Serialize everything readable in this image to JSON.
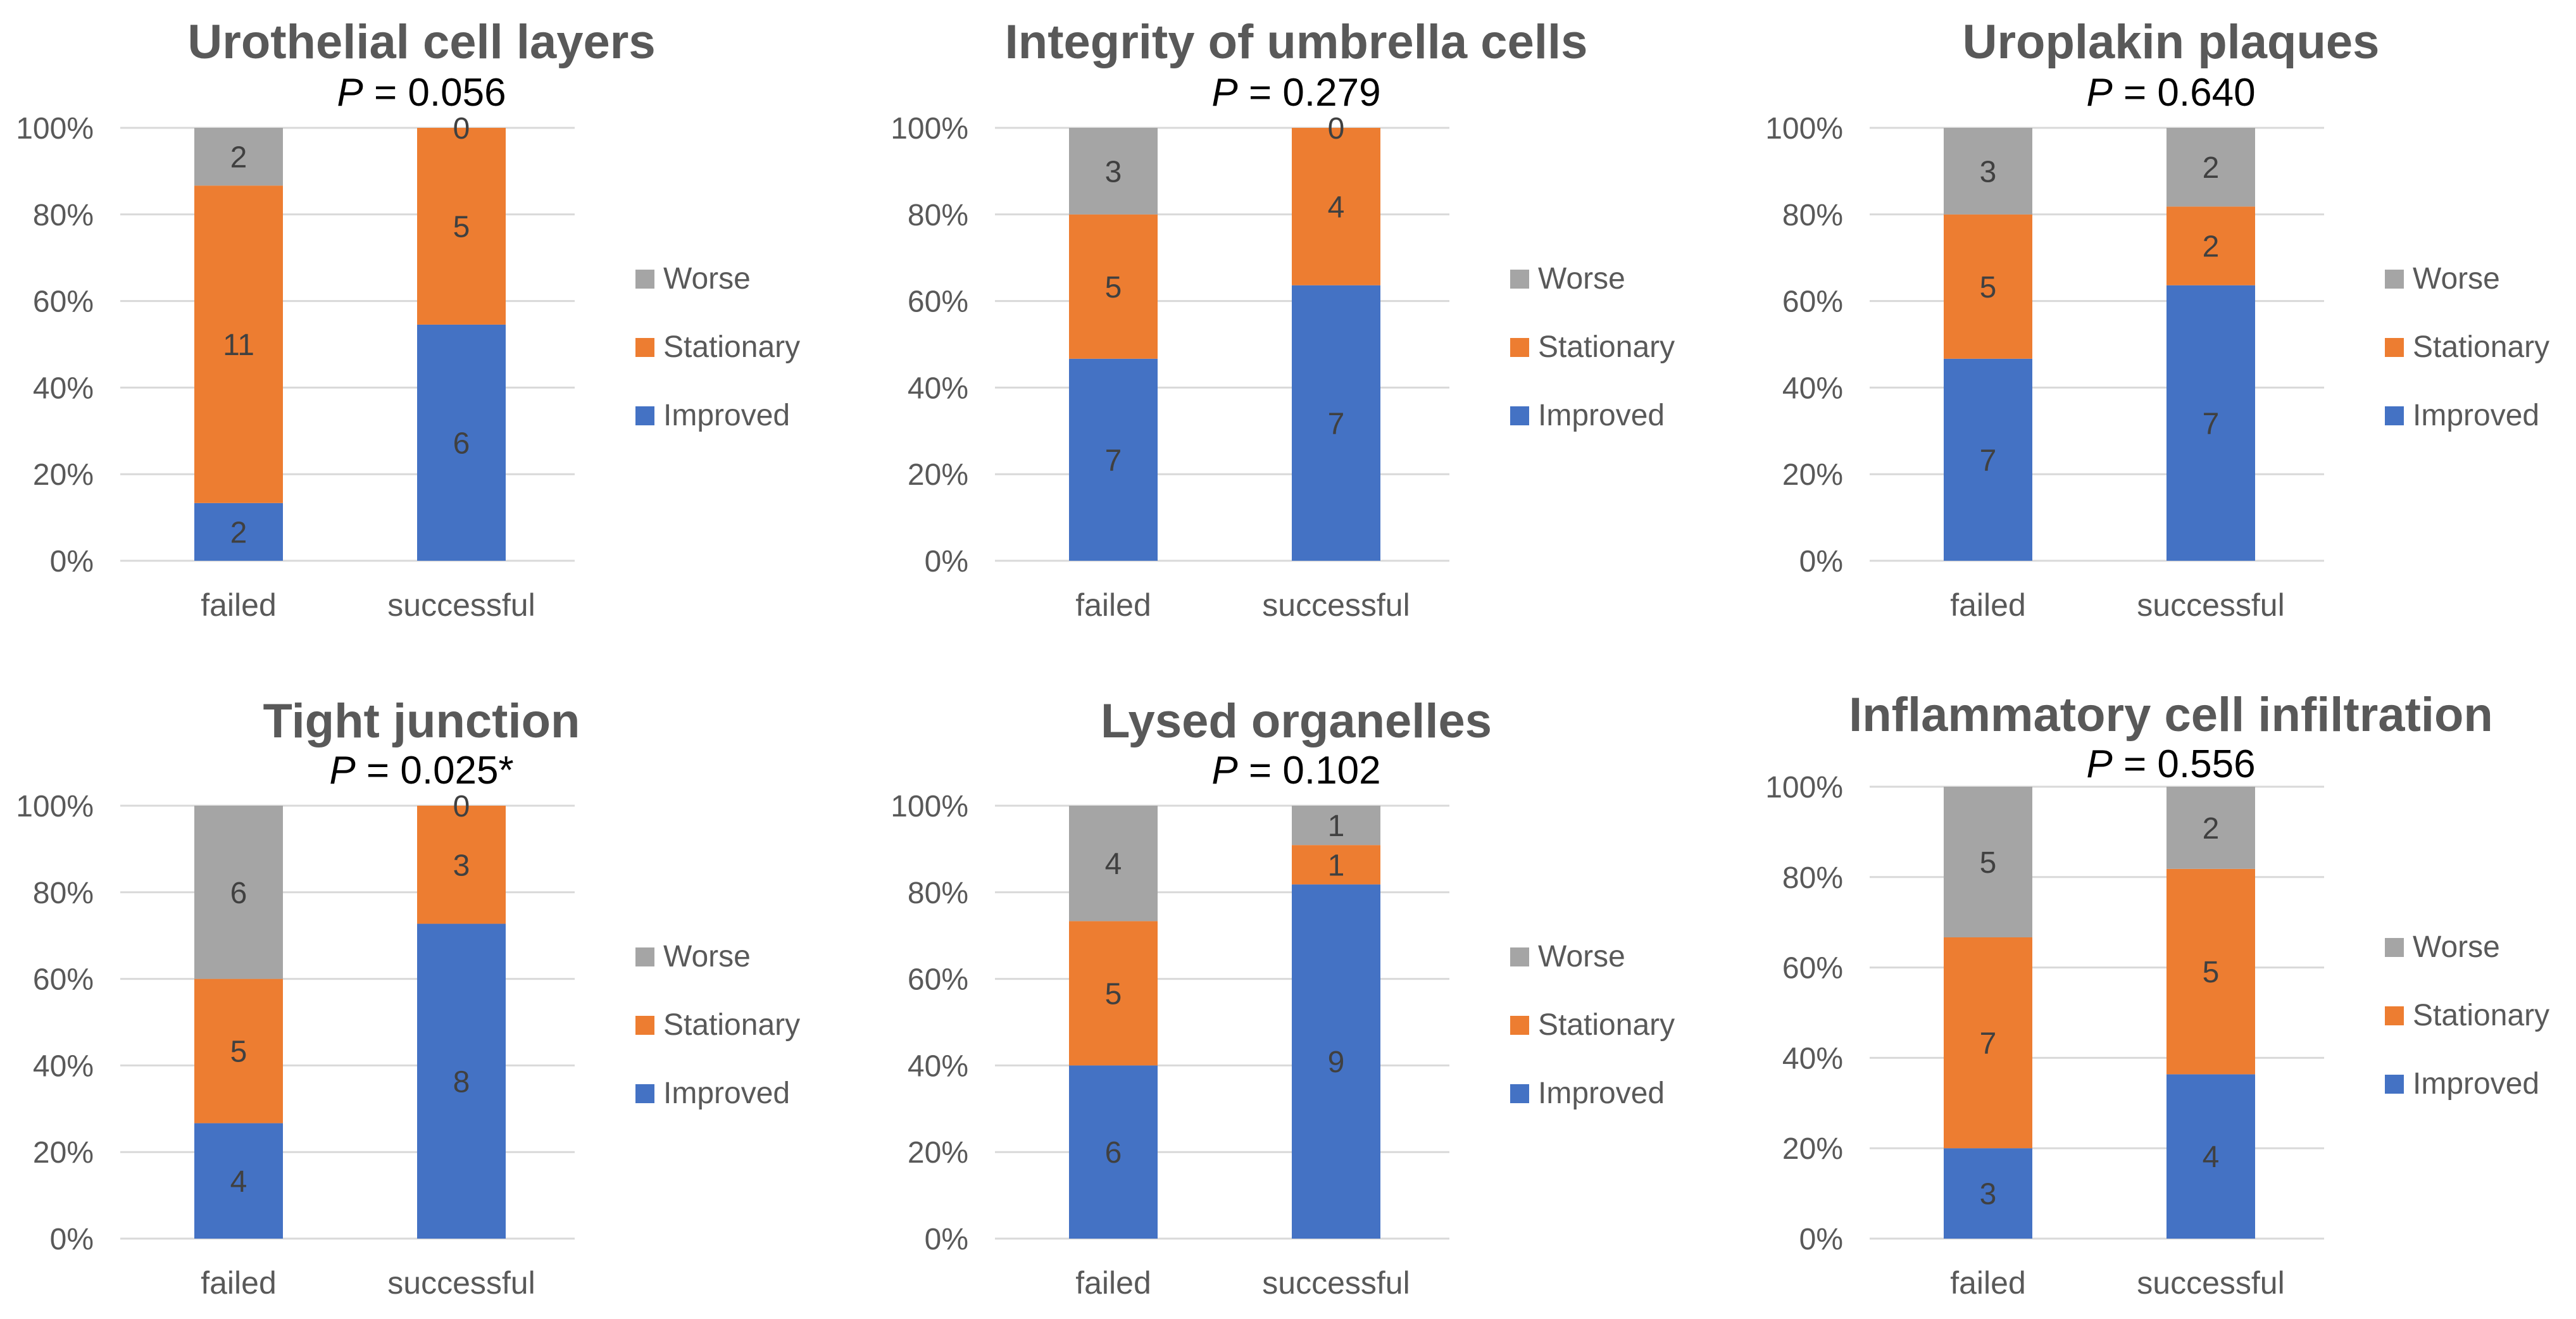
{
  "legend_labels": {
    "improved": "Improved",
    "stationary": "Stationary",
    "worse": "Worse"
  },
  "colors": {
    "improved": "#4472c4",
    "stationary": "#ed7d31",
    "worse": "#a5a5a5"
  },
  "chart_data": [
    {
      "type": "bar",
      "stacked": "percent",
      "title": "Urothelial cell layers",
      "p_label": "P",
      "p_value": " = 0.056",
      "categories": [
        "failed",
        "successful"
      ],
      "y_ticks": [
        "0%",
        "20%",
        "40%",
        "60%",
        "80%",
        "100%"
      ],
      "ylim": [
        0,
        100
      ],
      "legend_position": "right",
      "series": [
        {
          "name": "Improved",
          "values": [
            2,
            6
          ]
        },
        {
          "name": "Stationary",
          "values": [
            11,
            5
          ]
        },
        {
          "name": "Worse",
          "values": [
            2,
            0
          ]
        }
      ]
    },
    {
      "type": "bar",
      "stacked": "percent",
      "title": "Integrity of umbrella cells",
      "p_label": "P",
      "p_value": " = 0.279",
      "categories": [
        "failed",
        "successful"
      ],
      "y_ticks": [
        "0%",
        "20%",
        "40%",
        "60%",
        "80%",
        "100%"
      ],
      "ylim": [
        0,
        100
      ],
      "legend_position": "right",
      "series": [
        {
          "name": "Improved",
          "values": [
            7,
            7
          ]
        },
        {
          "name": "Stationary",
          "values": [
            5,
            4
          ]
        },
        {
          "name": "Worse",
          "values": [
            3,
            0
          ]
        }
      ]
    },
    {
      "type": "bar",
      "stacked": "percent",
      "title": "Uroplakin plaques",
      "p_label": "P",
      "p_value": " = 0.640",
      "categories": [
        "failed",
        "successful"
      ],
      "y_ticks": [
        "0%",
        "20%",
        "40%",
        "60%",
        "80%",
        "100%"
      ],
      "ylim": [
        0,
        100
      ],
      "legend_position": "right",
      "series": [
        {
          "name": "Improved",
          "values": [
            7,
            7
          ]
        },
        {
          "name": "Stationary",
          "values": [
            5,
            2
          ]
        },
        {
          "name": "Worse",
          "values": [
            3,
            2
          ]
        }
      ]
    },
    {
      "type": "bar",
      "stacked": "percent",
      "title": "Tight junction",
      "p_label": "P",
      "p_value": " = 0.025*",
      "categories": [
        "failed",
        "successful"
      ],
      "y_ticks": [
        "0%",
        "20%",
        "40%",
        "60%",
        "80%",
        "100%"
      ],
      "ylim": [
        0,
        100
      ],
      "legend_position": "right",
      "series": [
        {
          "name": "Improved",
          "values": [
            4,
            8
          ]
        },
        {
          "name": "Stationary",
          "values": [
            5,
            3
          ]
        },
        {
          "name": "Worse",
          "values": [
            6,
            0
          ]
        }
      ]
    },
    {
      "type": "bar",
      "stacked": "percent",
      "title": "Lysed organelles",
      "p_label": "P",
      "p_value": " = 0.102",
      "categories": [
        "failed",
        "successful"
      ],
      "y_ticks": [
        "0%",
        "20%",
        "40%",
        "60%",
        "80%",
        "100%"
      ],
      "ylim": [
        0,
        100
      ],
      "legend_position": "right",
      "series": [
        {
          "name": "Improved",
          "values": [
            6,
            9
          ]
        },
        {
          "name": "Stationary",
          "values": [
            5,
            1
          ]
        },
        {
          "name": "Worse",
          "values": [
            4,
            1
          ]
        }
      ]
    },
    {
      "type": "bar",
      "stacked": "percent",
      "title": "Inflammatory cell infiltration",
      "p_label": "P",
      "p_value": " = 0.556",
      "categories": [
        "failed",
        "successful"
      ],
      "y_ticks": [
        "0%",
        "20%",
        "40%",
        "60%",
        "80%",
        "100%"
      ],
      "ylim": [
        0,
        100
      ],
      "legend_position": "right",
      "series": [
        {
          "name": "Improved",
          "values": [
            3,
            4
          ]
        },
        {
          "name": "Stationary",
          "values": [
            7,
            5
          ]
        },
        {
          "name": "Worse",
          "values": [
            5,
            2
          ]
        }
      ]
    }
  ]
}
